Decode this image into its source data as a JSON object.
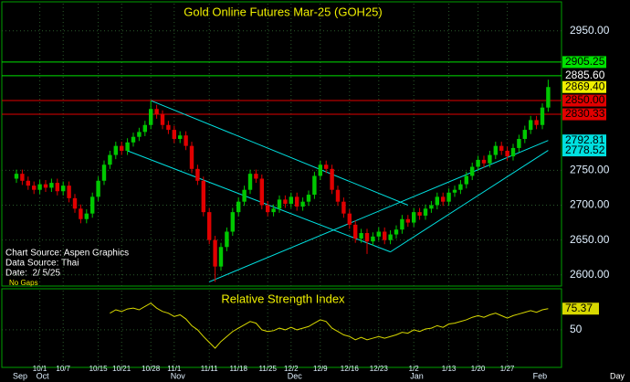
{
  "chart_data": {
    "type": "candlestick",
    "title": "Gold Online Futures Mar-25 (GOH25)",
    "categories": [
      null,
      null,
      null,
      null,
      "10/1",
      null,
      null,
      null,
      "10/7",
      null,
      null,
      null,
      null,
      null,
      "10/15",
      null,
      null,
      null,
      "10/21",
      null,
      null,
      null,
      null,
      "10/28",
      null,
      null,
      null,
      "11/1",
      null,
      null,
      null,
      null,
      null,
      "11/11",
      null,
      null,
      null,
      null,
      "11/18",
      null,
      null,
      null,
      null,
      "11/25",
      null,
      null,
      null,
      "12/2",
      null,
      null,
      null,
      null,
      "12/9",
      null,
      null,
      null,
      null,
      "12/16",
      null,
      null,
      null,
      null,
      "12/23",
      null,
      null,
      null,
      null,
      null,
      "1/2",
      null,
      null,
      null,
      null,
      null,
      "1/13",
      null,
      null,
      null,
      null,
      "1/20",
      null,
      null,
      null,
      null,
      "1/27",
      null,
      null,
      null,
      null,
      null,
      null,
      null
    ],
    "months": [
      "Sep",
      null,
      null,
      null,
      "Oct",
      null,
      null,
      null,
      null,
      null,
      null,
      null,
      null,
      null,
      null,
      null,
      null,
      null,
      null,
      null,
      null,
      null,
      null,
      null,
      null,
      null,
      null,
      "Nov",
      null,
      null,
      null,
      null,
      null,
      null,
      null,
      null,
      null,
      null,
      null,
      null,
      null,
      null,
      null,
      null,
      null,
      null,
      null,
      "Dec",
      null,
      null,
      null,
      null,
      null,
      null,
      null,
      null,
      null,
      null,
      null,
      null,
      null,
      null,
      null,
      null,
      null,
      null,
      null,
      null,
      "Jan",
      null,
      null,
      null,
      null,
      null,
      null,
      null,
      null,
      null,
      null,
      null,
      null,
      null,
      null,
      null,
      null,
      null,
      null,
      null,
      null,
      "Feb",
      null,
      null
    ],
    "open": [
      2738,
      2745,
      2735,
      2728,
      2722,
      2730,
      2725,
      2732,
      2720,
      2728,
      2710,
      2695,
      2680,
      2688,
      2712,
      2735,
      2758,
      2772,
      2785,
      2778,
      2790,
      2798,
      2805,
      2815,
      2838,
      2830,
      2815,
      2808,
      2795,
      2800,
      2785,
      2752,
      2735,
      2690,
      2650,
      2612,
      2640,
      2662,
      2690,
      2705,
      2722,
      2745,
      2738,
      2700,
      2690,
      2695,
      2708,
      2702,
      2712,
      2698,
      2705,
      2715,
      2742,
      2758,
      2752,
      2722,
      2705,
      2688,
      2672,
      2652,
      2660,
      2648,
      2655,
      2662,
      2650,
      2658,
      2665,
      2680,
      2675,
      2690,
      2685,
      2695,
      2700,
      2712,
      2705,
      2718,
      2722,
      2730,
      2742,
      2755,
      2765,
      2760,
      2772,
      2785,
      2778,
      2770,
      2782,
      2795,
      2808,
      2822,
      2815,
      2840
    ],
    "high": [
      2751,
      2751,
      2741,
      2734,
      2736,
      2736,
      2738,
      2738,
      2734,
      2734,
      2716,
      2701,
      2694,
      2718,
      2741,
      2764,
      2778,
      2791,
      2791,
      2796,
      2804,
      2811,
      2821,
      2850,
      2844,
      2836,
      2821,
      2814,
      2806,
      2806,
      2791,
      2758,
      2741,
      2696,
      2656,
      2646,
      2668,
      2696,
      2711,
      2728,
      2751,
      2751,
      2744,
      2706,
      2701,
      2714,
      2714,
      2718,
      2718,
      2711,
      2721,
      2748,
      2764,
      2764,
      2758,
      2728,
      2711,
      2694,
      2678,
      2666,
      2666,
      2661,
      2668,
      2668,
      2664,
      2671,
      2686,
      2686,
      2696,
      2696,
      2701,
      2706,
      2718,
      2718,
      2724,
      2728,
      2736,
      2748,
      2761,
      2771,
      2771,
      2778,
      2791,
      2791,
      2784,
      2788,
      2801,
      2814,
      2828,
      2828,
      2846,
      2880
    ],
    "low": [
      2732,
      2729,
      2722,
      2716,
      2716,
      2719,
      2719,
      2714,
      2714,
      2704,
      2689,
      2674,
      2674,
      2682,
      2706,
      2729,
      2752,
      2766,
      2772,
      2772,
      2784,
      2792,
      2799,
      2809,
      2824,
      2809,
      2802,
      2789,
      2789,
      2779,
      2746,
      2729,
      2684,
      2644,
      2590,
      2606,
      2634,
      2656,
      2684,
      2699,
      2716,
      2732,
      2694,
      2684,
      2684,
      2689,
      2696,
      2696,
      2692,
      2692,
      2699,
      2709,
      2736,
      2746,
      2716,
      2699,
      2682,
      2666,
      2646,
      2646,
      2630,
      2642,
      2649,
      2644,
      2644,
      2652,
      2659,
      2669,
      2669,
      2679,
      2679,
      2689,
      2694,
      2699,
      2699,
      2712,
      2716,
      2724,
      2736,
      2749,
      2754,
      2754,
      2766,
      2772,
      2764,
      2764,
      2776,
      2789,
      2802,
      2809,
      2809,
      2834
    ],
    "close": [
      2745,
      2735,
      2728,
      2722,
      2730,
      2725,
      2732,
      2720,
      2728,
      2710,
      2695,
      2680,
      2688,
      2712,
      2735,
      2758,
      2772,
      2785,
      2778,
      2790,
      2798,
      2805,
      2815,
      2838,
      2830,
      2815,
      2808,
      2795,
      2800,
      2785,
      2752,
      2735,
      2690,
      2650,
      2612,
      2640,
      2662,
      2690,
      2705,
      2722,
      2745,
      2738,
      2700,
      2690,
      2695,
      2708,
      2702,
      2712,
      2698,
      2705,
      2715,
      2742,
      2758,
      2752,
      2722,
      2705,
      2688,
      2672,
      2652,
      2660,
      2648,
      2655,
      2662,
      2650,
      2658,
      2665,
      2680,
      2675,
      2690,
      2685,
      2695,
      2700,
      2712,
      2705,
      2718,
      2722,
      2730,
      2742,
      2755,
      2765,
      2760,
      2772,
      2785,
      2778,
      2770,
      2782,
      2795,
      2808,
      2822,
      2815,
      2840,
      2869.4
    ],
    "up_color": "#00c800",
    "down_color": "#e00000",
    "ylim": [
      2584,
      2989
    ],
    "yticks": [
      {
        "value": 2600,
        "label": "2600.00"
      },
      {
        "value": 2650,
        "label": "2650.00"
      },
      {
        "value": 2700,
        "label": "2700.00"
      },
      {
        "value": 2750,
        "label": "2750.00"
      },
      {
        "value": 2950,
        "label": "2950.00"
      }
    ],
    "grid": true,
    "levels": [
      {
        "value": 2905.25,
        "label": "2905.25",
        "color": "#00e000",
        "line": true,
        "box": true
      },
      {
        "value": 2885.6,
        "label": "2885.60",
        "color": "#00e000",
        "line": true,
        "box": false
      },
      {
        "value": 2869.4,
        "label": "2869.40",
        "color": "#f0f000",
        "line": false,
        "box": true
      },
      {
        "value": 2850,
        "label": "2850.00",
        "color": "#e00000",
        "line": true,
        "box": true
      },
      {
        "value": 2830.33,
        "label": "2830.33",
        "color": "#e00000",
        "line": true,
        "box": true
      },
      {
        "value": 2792.81,
        "label": "2792.81",
        "color": "#00e0e0",
        "line": false,
        "box": true
      },
      {
        "value": 2778.52,
        "label": "2778.52",
        "color": "#00e0e0",
        "line": false,
        "box": true
      }
    ],
    "trendlines": [
      {
        "color": "#00e0e0",
        "x": [
          23,
          67
        ],
        "y": [
          2850,
          2700
        ]
      },
      {
        "color": "#00e0e0",
        "x": [
          19,
          64
        ],
        "y": [
          2778,
          2633
        ]
      },
      {
        "color": "#00e0e0",
        "x": [
          33,
          91
        ],
        "y": [
          2590,
          2792.81
        ]
      },
      {
        "color": "#00e0e0",
        "x": [
          64,
          91
        ],
        "y": [
          2633,
          2778.52
        ]
      }
    ],
    "notes": [
      "Chart Source: Aspen Graphics",
      "Data Source: Thai",
      "Date:  2/ 5/25"
    ],
    "gap_mode": "No Gaps",
    "x_unit": "Day",
    "indicator": {
      "type": "line",
      "title": "Relative Strength Index",
      "color": "#d8d800",
      "ylim": [
        5,
        97
      ],
      "yticks": [
        50
      ],
      "values": [
        null,
        null,
        null,
        null,
        null,
        null,
        null,
        null,
        null,
        null,
        null,
        null,
        null,
        null,
        null,
        null,
        70,
        74,
        72,
        75,
        76,
        74,
        78,
        82,
        76,
        72,
        70,
        66,
        68,
        63,
        55,
        50,
        42,
        35,
        28,
        36,
        42,
        48,
        52,
        56,
        60,
        58,
        50,
        48,
        49,
        52,
        50,
        53,
        50,
        52,
        54,
        58,
        62,
        60,
        52,
        48,
        44,
        42,
        38,
        41,
        38,
        40,
        42,
        40,
        42,
        44,
        47,
        46,
        50,
        48,
        51,
        52,
        55,
        53,
        57,
        58,
        60,
        62,
        65,
        67,
        65,
        68,
        70,
        67,
        64,
        67,
        69,
        71,
        73,
        71,
        74,
        75.37
      ]
    }
  }
}
